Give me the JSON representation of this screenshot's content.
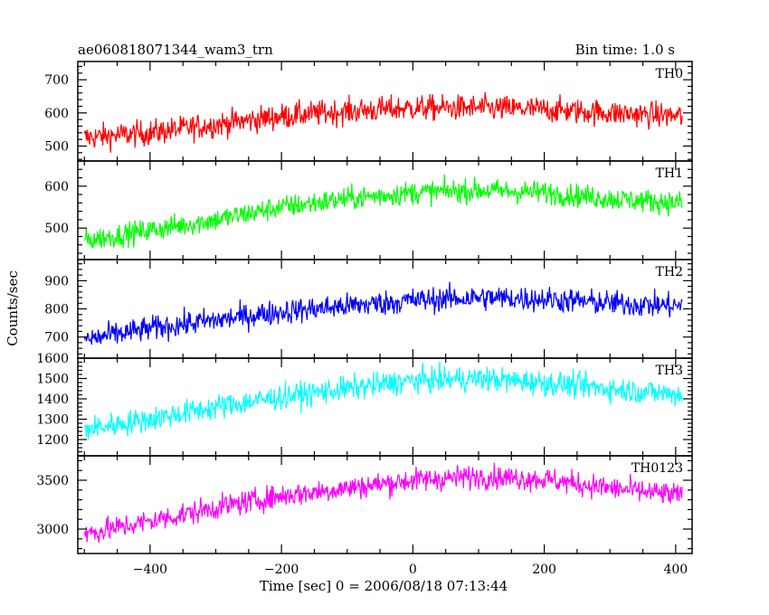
{
  "chart_data": {
    "type": "line",
    "title": "ae060818071344_wam3_trn",
    "subtitle": "Bin time: 1.0 s",
    "xlabel": "Time [sec] 0 = 2006/08/18 07:13:44",
    "ylabel": "Counts/sec",
    "xlim": [
      -510,
      425
    ],
    "x_ticks": [
      -400,
      -200,
      0,
      200,
      400
    ],
    "x_tick_labels": [
      "−400",
      "−200",
      "0",
      "200",
      "400"
    ],
    "x_sampling": {
      "start": -500,
      "end": 410,
      "step": 1
    },
    "panels": [
      {
        "name": "TH0",
        "color": "#ff0000",
        "ylim": [
          455,
          755
        ],
        "yticks": [
          500,
          600,
          700
        ],
        "ytick_labels": [
          "500",
          "600",
          "700"
        ],
        "trend_x": [
          -500,
          -400,
          -300,
          -200,
          -100,
          0,
          100,
          200,
          300,
          410
        ],
        "trend_y": [
          525,
          540,
          565,
          590,
          605,
          615,
          615,
          610,
          600,
          590
        ],
        "noise_amplitude": 35
      },
      {
        "name": "TH1",
        "color": "#00ff00",
        "ylim": [
          425,
          660
        ],
        "yticks": [
          500,
          600
        ],
        "ytick_labels": [
          "500",
          "600"
        ],
        "trend_x": [
          -500,
          -400,
          -300,
          -200,
          -100,
          0,
          100,
          200,
          300,
          410
        ],
        "trend_y": [
          470,
          495,
          520,
          550,
          570,
          585,
          590,
          585,
          570,
          560
        ],
        "noise_amplitude": 25
      },
      {
        "name": "TH2",
        "color": "#0000ff",
        "ylim": [
          625,
          975
        ],
        "yticks": [
          700,
          800,
          900
        ],
        "ytick_labels": [
          "700",
          "800",
          "900"
        ],
        "trend_x": [
          -500,
          -400,
          -300,
          -200,
          -100,
          0,
          100,
          200,
          300,
          410
        ],
        "trend_y": [
          690,
          730,
          760,
          790,
          810,
          830,
          840,
          835,
          820,
          810
        ],
        "noise_amplitude": 40
      },
      {
        "name": "TH3",
        "color": "#00ffff",
        "ylim": [
          1120,
          1600
        ],
        "yticks": [
          1200,
          1300,
          1400,
          1500,
          1600
        ],
        "ytick_labels": [
          "1200",
          "1300",
          "1400",
          "1500",
          "1600"
        ],
        "trend_x": [
          -500,
          -400,
          -300,
          -200,
          -100,
          0,
          100,
          200,
          300,
          410
        ],
        "trend_y": [
          1250,
          1300,
          1360,
          1410,
          1450,
          1490,
          1500,
          1480,
          1450,
          1420
        ],
        "noise_amplitude": 55
      },
      {
        "name": "TH0123",
        "color": "#ff00ff",
        "ylim": [
          2750,
          3750
        ],
        "yticks": [
          3000,
          3500
        ],
        "ytick_labels": [
          "3000",
          "3500"
        ],
        "trend_x": [
          -500,
          -400,
          -300,
          -200,
          -100,
          0,
          100,
          200,
          300,
          410
        ],
        "trend_y": [
          2950,
          3080,
          3220,
          3340,
          3420,
          3500,
          3540,
          3510,
          3420,
          3340
        ],
        "noise_amplitude": 110
      }
    ],
    "grid": false,
    "legend": "none"
  }
}
